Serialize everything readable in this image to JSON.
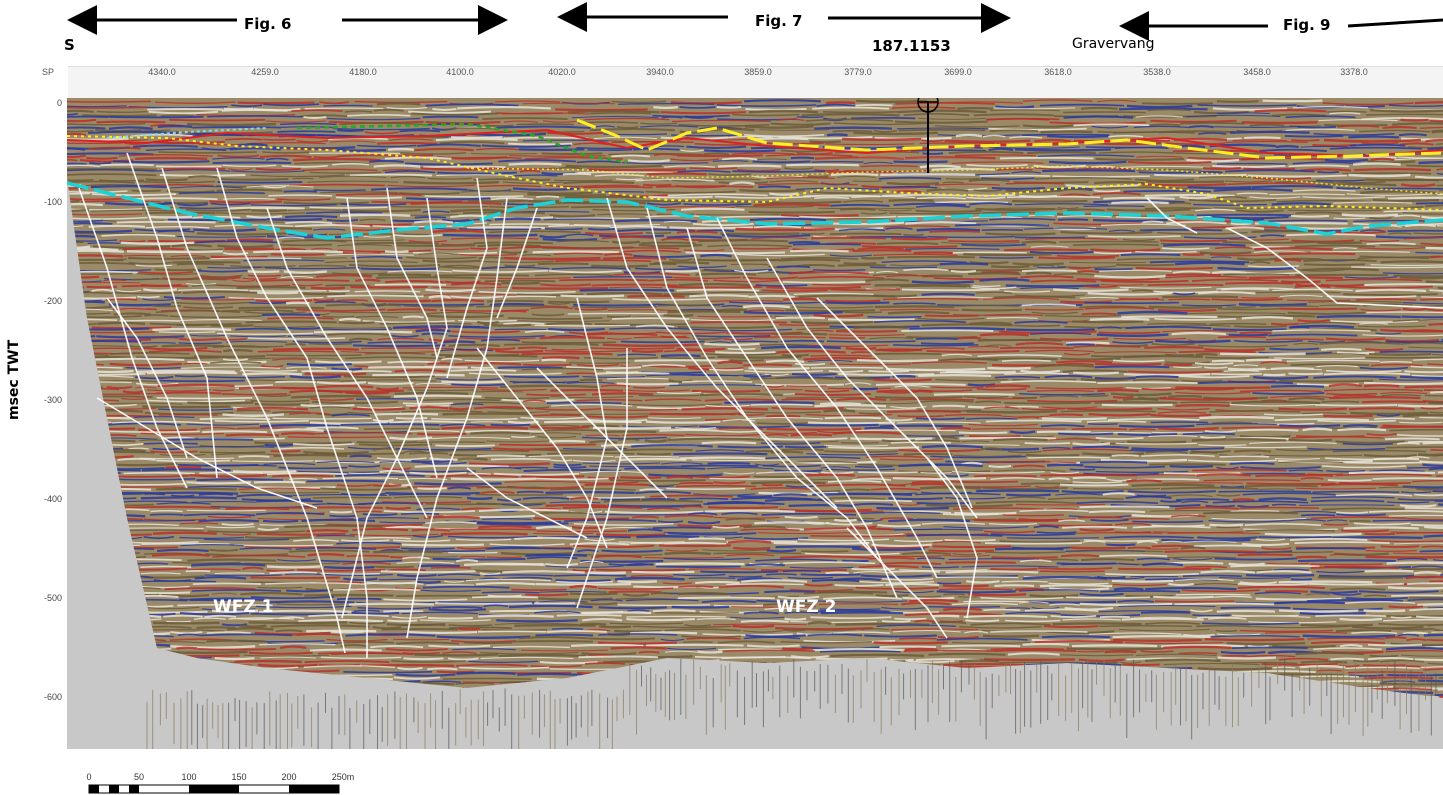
{
  "header": {
    "fig_labels": [
      "Fig. 6",
      "Fig. 7",
      "Fig. 9"
    ],
    "direction_label": "S",
    "line_id": "187.1153",
    "town": "Gravervang"
  },
  "axis": {
    "sp_label": "SP",
    "sp_ticks": [
      "4340.0",
      "4259.0",
      "4180.0",
      "4100.0",
      "4020.0",
      "3940.0",
      "3859.0",
      "3779.0",
      "3699.0",
      "3618.0",
      "3538.0",
      "3458.0",
      "3378.0"
    ],
    "y_label": "msec TWT",
    "y_ticks": [
      "0",
      "-100",
      "-200",
      "-300",
      "-400",
      "-500",
      "-600"
    ]
  },
  "zones": {
    "wfz1": "WFZ 1",
    "wfz2": "WFZ 2"
  },
  "scale_bar": {
    "labels": [
      "0",
      "50",
      "100",
      "150",
      "200",
      "250m"
    ]
  },
  "colors": {
    "horizon_cyan": "#19d3d8",
    "horizon_yellow": "#ffee22",
    "horizon_green": "#22aa22",
    "horizon_red": "#e02020",
    "fault": "#ffffff",
    "background_gray": "#c8c8c8",
    "reflector_red": "#b8302a",
    "reflector_blue": "#2838a0",
    "reflector_tan": "#9a8a68"
  },
  "icons": {
    "well": "well-symbol-icon",
    "arrow_left": "arrow-left-icon",
    "arrow_right": "arrow-right-icon"
  }
}
